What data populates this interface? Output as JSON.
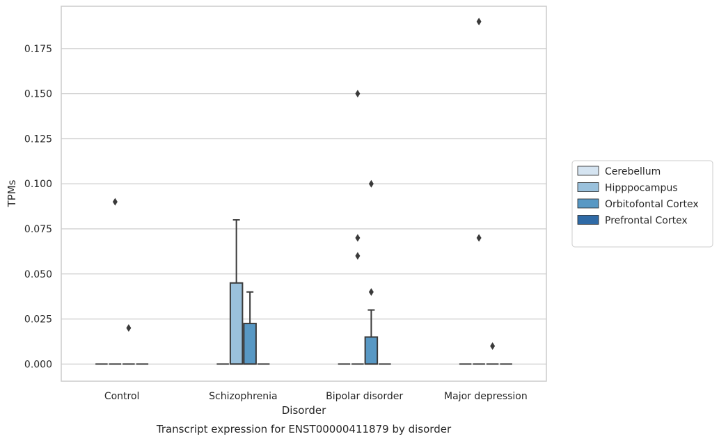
{
  "chart_data": {
    "type": "box",
    "caption": "Transcript expression for ENST00000411879 by disorder",
    "xlabel": "Disorder",
    "ylabel": "TPMs",
    "ylim": [
      -0.0095,
      0.1985
    ],
    "yticks": [
      0.0,
      0.025,
      0.05,
      0.075,
      0.1,
      0.125,
      0.15,
      0.175
    ],
    "ytick_labels": [
      "0.000",
      "0.025",
      "0.050",
      "0.075",
      "0.100",
      "0.125",
      "0.150",
      "0.175"
    ],
    "grid": true,
    "legend_position": "right",
    "categories": [
      "Control",
      "Schizophrenia",
      "Bipolar disorder",
      "Major depression"
    ],
    "series": [
      {
        "name": "Cerebellum",
        "color": "#d5e4f1",
        "boxes": [
          {
            "q1": 0,
            "median": 0,
            "q3": 0,
            "whisker_low": 0,
            "whisker_high": 0,
            "outliers": []
          },
          {
            "q1": 0,
            "median": 0,
            "q3": 0,
            "whisker_low": 0,
            "whisker_high": 0,
            "outliers": []
          },
          {
            "q1": 0,
            "median": 0,
            "q3": 0,
            "whisker_low": 0,
            "whisker_high": 0,
            "outliers": []
          },
          {
            "q1": 0,
            "median": 0,
            "q3": 0,
            "whisker_low": 0,
            "whisker_high": 0,
            "outliers": []
          }
        ]
      },
      {
        "name": "Hipppocampus",
        "color": "#9ac1dc",
        "boxes": [
          {
            "q1": 0,
            "median": 0,
            "q3": 0,
            "whisker_low": 0,
            "whisker_high": 0,
            "outliers": [
              0.09
            ]
          },
          {
            "q1": 0,
            "median": 0,
            "q3": 0.045,
            "whisker_low": 0,
            "whisker_high": 0.08,
            "outliers": []
          },
          {
            "q1": 0,
            "median": 0,
            "q3": 0,
            "whisker_low": 0,
            "whisker_high": 0,
            "outliers": [
              0.15,
              0.07,
              0.06
            ]
          },
          {
            "q1": 0,
            "median": 0,
            "q3": 0,
            "whisker_low": 0,
            "whisker_high": 0,
            "outliers": [
              0.19,
              0.07
            ]
          }
        ]
      },
      {
        "name": "Orbitofontal Cortex",
        "color": "#5898c4",
        "boxes": [
          {
            "q1": 0,
            "median": 0,
            "q3": 0,
            "whisker_low": 0,
            "whisker_high": 0,
            "outliers": [
              0.02
            ]
          },
          {
            "q1": 0,
            "median": 0,
            "q3": 0.0225,
            "whisker_low": 0,
            "whisker_high": 0.04,
            "outliers": []
          },
          {
            "q1": 0,
            "median": 0,
            "q3": 0.015,
            "whisker_low": 0,
            "whisker_high": 0.03,
            "outliers": [
              0.1,
              0.04
            ]
          },
          {
            "q1": 0,
            "median": 0,
            "q3": 0,
            "whisker_low": 0,
            "whisker_high": 0,
            "outliers": [
              0.01
            ]
          }
        ]
      },
      {
        "name": "Prefrontal Cortex",
        "color": "#2f6aa6",
        "boxes": [
          {
            "q1": 0,
            "median": 0,
            "q3": 0,
            "whisker_low": 0,
            "whisker_high": 0,
            "outliers": []
          },
          {
            "q1": 0,
            "median": 0,
            "q3": 0,
            "whisker_low": 0,
            "whisker_high": 0,
            "outliers": []
          },
          {
            "q1": 0,
            "median": 0,
            "q3": 0,
            "whisker_low": 0,
            "whisker_high": 0,
            "outliers": []
          },
          {
            "q1": 0,
            "median": 0,
            "q3": 0,
            "whisker_low": 0,
            "whisker_high": 0,
            "outliers": []
          }
        ]
      }
    ]
  }
}
